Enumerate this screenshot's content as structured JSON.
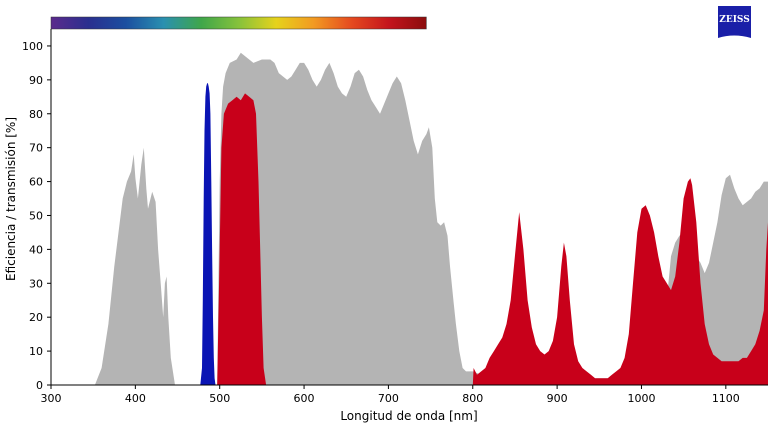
{
  "logo": {
    "text": "ZEISS",
    "color": "#1a1fa8"
  },
  "spectrum_bar": {
    "x_range": [
      300,
      745
    ],
    "stops": [
      "#5b2a8c",
      "#2a2f8f",
      "#1b4fa0",
      "#2a90b0",
      "#3fa64a",
      "#86c23b",
      "#e6d21c",
      "#f29a22",
      "#e54a1f",
      "#c4141c",
      "#8b0d0d"
    ]
  },
  "chart_data": {
    "type": "area",
    "title": "",
    "xlabel": "Longitud de onda [nm]",
    "ylabel": "Eficiencia / transmisión [%]",
    "xlim": [
      300,
      1150
    ],
    "ylim": [
      0,
      105
    ],
    "x_ticks": [
      300,
      400,
      500,
      600,
      700,
      800,
      900,
      1000,
      1100
    ],
    "y_ticks": [
      0,
      10,
      20,
      30,
      40,
      50,
      60,
      70,
      80,
      90,
      100
    ],
    "grid": false,
    "legend": "none",
    "series": [
      {
        "color": "#b4b4b4",
        "points": [
          [
            352,
            0
          ],
          [
            360,
            5
          ],
          [
            368,
            18
          ],
          [
            375,
            35
          ],
          [
            380,
            45
          ],
          [
            385,
            55
          ],
          [
            390,
            60
          ],
          [
            395,
            63
          ],
          [
            398,
            68
          ],
          [
            400,
            61
          ],
          [
            403,
            55
          ],
          [
            407,
            65
          ],
          [
            410,
            70
          ],
          [
            413,
            58
          ],
          [
            415,
            52
          ],
          [
            420,
            57
          ],
          [
            424,
            54
          ],
          [
            427,
            40
          ],
          [
            430,
            30
          ],
          [
            433,
            20
          ],
          [
            435,
            30
          ],
          [
            437,
            32
          ],
          [
            439,
            20
          ],
          [
            442,
            8
          ],
          [
            447,
            0
          ],
          [
            497,
            0
          ],
          [
            500,
            60
          ],
          [
            502,
            80
          ],
          [
            504,
            88
          ],
          [
            507,
            92
          ],
          [
            512,
            95
          ],
          [
            520,
            96
          ],
          [
            525,
            98
          ],
          [
            530,
            97
          ],
          [
            535,
            96
          ],
          [
            540,
            95
          ],
          [
            550,
            96
          ],
          [
            560,
            96
          ],
          [
            565,
            95
          ],
          [
            570,
            92
          ],
          [
            575,
            91
          ],
          [
            580,
            90
          ],
          [
            585,
            91
          ],
          [
            590,
            93
          ],
          [
            595,
            95
          ],
          [
            600,
            95
          ],
          [
            605,
            93
          ],
          [
            610,
            90
          ],
          [
            615,
            88
          ],
          [
            620,
            90
          ],
          [
            625,
            93
          ],
          [
            630,
            95
          ],
          [
            635,
            92
          ],
          [
            640,
            88
          ],
          [
            645,
            86
          ],
          [
            650,
            85
          ],
          [
            655,
            88
          ],
          [
            660,
            92
          ],
          [
            665,
            93
          ],
          [
            670,
            91
          ],
          [
            675,
            87
          ],
          [
            680,
            84
          ],
          [
            685,
            82
          ],
          [
            690,
            80
          ],
          [
            695,
            83
          ],
          [
            700,
            86
          ],
          [
            705,
            89
          ],
          [
            710,
            91
          ],
          [
            715,
            89
          ],
          [
            720,
            84
          ],
          [
            725,
            78
          ],
          [
            730,
            72
          ],
          [
            735,
            68
          ],
          [
            740,
            72
          ],
          [
            745,
            74
          ],
          [
            748,
            76
          ],
          [
            752,
            70
          ],
          [
            755,
            55
          ],
          [
            758,
            48
          ],
          [
            762,
            47
          ],
          [
            766,
            48
          ],
          [
            770,
            44
          ],
          [
            773,
            35
          ],
          [
            777,
            25
          ],
          [
            780,
            18
          ],
          [
            784,
            10
          ],
          [
            788,
            5
          ],
          [
            792,
            4
          ],
          [
            800,
            4
          ],
          [
            810,
            3
          ],
          [
            820,
            2
          ],
          [
            830,
            2
          ],
          [
            840,
            3
          ],
          [
            850,
            4
          ],
          [
            860,
            3
          ],
          [
            870,
            2
          ],
          [
            880,
            2
          ],
          [
            890,
            1
          ],
          [
            900,
            1
          ],
          [
            920,
            1
          ],
          [
            940,
            2
          ],
          [
            960,
            2
          ],
          [
            980,
            3
          ],
          [
            1000,
            4
          ],
          [
            1010,
            5
          ],
          [
            1020,
            10
          ],
          [
            1030,
            25
          ],
          [
            1035,
            38
          ],
          [
            1040,
            42
          ],
          [
            1045,
            44
          ],
          [
            1050,
            45
          ],
          [
            1055,
            47
          ],
          [
            1058,
            45
          ],
          [
            1060,
            42
          ],
          [
            1065,
            38
          ],
          [
            1070,
            36
          ],
          [
            1075,
            33
          ],
          [
            1080,
            36
          ],
          [
            1085,
            42
          ],
          [
            1090,
            48
          ],
          [
            1095,
            56
          ],
          [
            1100,
            61
          ],
          [
            1105,
            62
          ],
          [
            1110,
            58
          ],
          [
            1115,
            55
          ],
          [
            1120,
            53
          ],
          [
            1125,
            54
          ],
          [
            1130,
            55
          ],
          [
            1135,
            57
          ],
          [
            1140,
            58
          ],
          [
            1145,
            60
          ],
          [
            1150,
            60
          ]
        ]
      },
      {
        "color": "#c8001a",
        "points": [
          [
            497,
            0
          ],
          [
            500,
            40
          ],
          [
            502,
            70
          ],
          [
            505,
            80
          ],
          [
            510,
            83
          ],
          [
            515,
            84
          ],
          [
            520,
            85
          ],
          [
            525,
            84
          ],
          [
            530,
            86
          ],
          [
            535,
            85
          ],
          [
            540,
            84
          ],
          [
            543,
            80
          ],
          [
            546,
            60
          ],
          [
            548,
            40
          ],
          [
            550,
            20
          ],
          [
            552,
            5
          ],
          [
            555,
            0
          ],
          [
            800,
            0
          ],
          [
            801,
            5
          ],
          [
            805,
            3
          ],
          [
            810,
            4
          ],
          [
            815,
            5
          ],
          [
            820,
            8
          ],
          [
            825,
            10
          ],
          [
            830,
            12
          ],
          [
            835,
            14
          ],
          [
            840,
            18
          ],
          [
            845,
            25
          ],
          [
            850,
            38
          ],
          [
            855,
            51
          ],
          [
            860,
            40
          ],
          [
            865,
            25
          ],
          [
            870,
            17
          ],
          [
            875,
            12
          ],
          [
            880,
            10
          ],
          [
            885,
            9
          ],
          [
            890,
            10
          ],
          [
            895,
            13
          ],
          [
            900,
            20
          ],
          [
            905,
            35
          ],
          [
            908,
            42
          ],
          [
            911,
            38
          ],
          [
            915,
            25
          ],
          [
            920,
            12
          ],
          [
            925,
            7
          ],
          [
            930,
            5
          ],
          [
            935,
            4
          ],
          [
            940,
            3
          ],
          [
            945,
            2
          ],
          [
            950,
            2
          ],
          [
            960,
            2
          ],
          [
            965,
            3
          ],
          [
            970,
            4
          ],
          [
            975,
            5
          ],
          [
            980,
            8
          ],
          [
            985,
            15
          ],
          [
            990,
            30
          ],
          [
            995,
            45
          ],
          [
            1000,
            52
          ],
          [
            1005,
            53
          ],
          [
            1010,
            50
          ],
          [
            1015,
            45
          ],
          [
            1020,
            38
          ],
          [
            1025,
            32
          ],
          [
            1030,
            30
          ],
          [
            1035,
            28
          ],
          [
            1040,
            32
          ],
          [
            1045,
            42
          ],
          [
            1050,
            55
          ],
          [
            1055,
            60
          ],
          [
            1058,
            61
          ],
          [
            1060,
            59
          ],
          [
            1065,
            48
          ],
          [
            1070,
            30
          ],
          [
            1075,
            18
          ],
          [
            1080,
            12
          ],
          [
            1085,
            9
          ],
          [
            1090,
            8
          ],
          [
            1095,
            7
          ],
          [
            1100,
            7
          ],
          [
            1105,
            7
          ],
          [
            1110,
            7
          ],
          [
            1115,
            7
          ],
          [
            1120,
            8
          ],
          [
            1125,
            8
          ],
          [
            1130,
            10
          ],
          [
            1135,
            12
          ],
          [
            1140,
            16
          ],
          [
            1145,
            22
          ],
          [
            1148,
            40
          ],
          [
            1150,
            48
          ]
        ]
      },
      {
        "color": "#0a14b4",
        "points": [
          [
            477,
            0
          ],
          [
            479,
            5
          ],
          [
            480,
            25
          ],
          [
            481,
            55
          ],
          [
            482,
            75
          ],
          [
            483,
            85
          ],
          [
            484,
            88
          ],
          [
            485,
            89
          ],
          [
            486,
            89
          ],
          [
            487,
            88
          ],
          [
            488,
            86
          ],
          [
            489,
            80
          ],
          [
            490,
            60
          ],
          [
            491,
            40
          ],
          [
            492,
            20
          ],
          [
            493,
            8
          ],
          [
            494,
            2
          ],
          [
            495,
            0
          ]
        ]
      }
    ]
  }
}
